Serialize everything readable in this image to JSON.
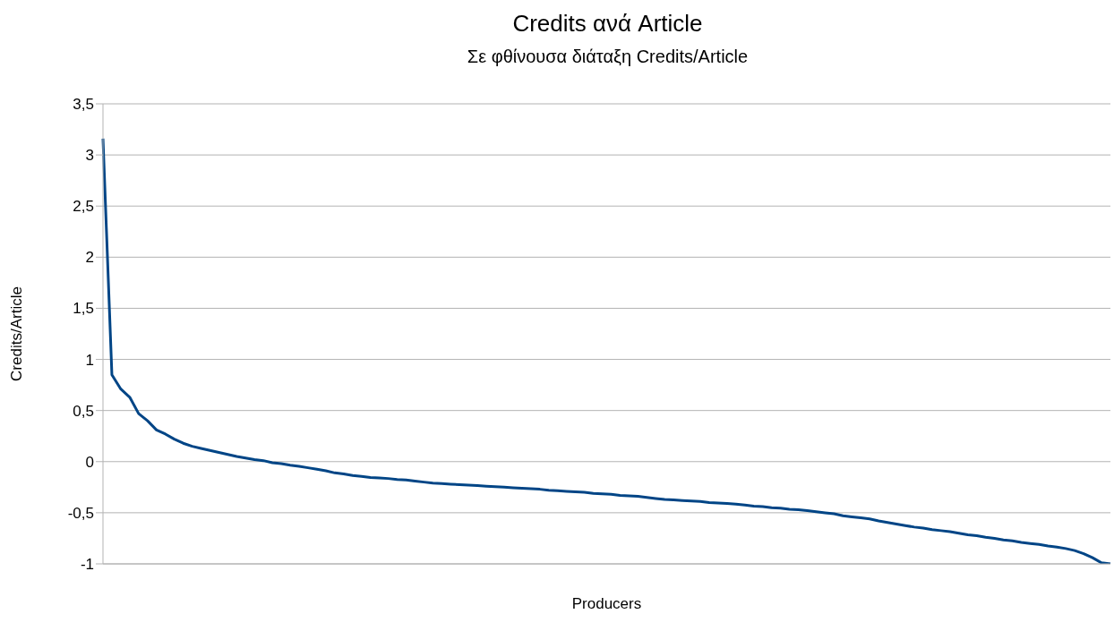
{
  "chart_data": {
    "type": "line",
    "title": "Credits ανά Article",
    "subtitle": "Σε φθίνουσα διάταξη Credits/Article",
    "xlabel": "Producers",
    "ylabel": "Credits/Article",
    "categories": [
      null,
      null,
      null,
      null,
      null,
      null,
      null,
      null,
      null,
      null,
      null,
      null,
      null,
      null,
      null,
      null,
      null,
      null,
      null,
      null,
      null,
      null,
      null,
      null,
      null,
      null,
      null,
      null,
      null,
      null,
      null,
      null,
      null,
      null,
      null,
      null,
      null,
      null,
      null,
      null,
      null,
      null,
      null,
      null,
      null,
      null,
      null,
      null,
      null,
      null,
      null,
      null,
      null,
      null,
      null,
      null,
      null,
      null,
      null,
      null,
      null,
      null,
      null,
      null,
      null,
      null,
      null,
      null,
      null,
      null,
      null,
      null,
      null,
      null,
      null,
      null,
      null,
      null,
      null,
      null,
      null,
      null,
      null,
      null,
      null,
      null,
      null,
      null,
      null,
      null,
      null,
      null,
      null,
      null,
      null,
      null,
      null,
      null,
      null,
      null,
      null,
      null,
      null,
      null,
      null,
      null,
      null,
      null,
      null,
      null,
      null,
      null,
      null,
      null
    ],
    "series": [
      {
        "color": "#004586",
        "values": [
          3.16,
          0.85,
          0.71,
          0.63,
          0.47,
          0.4,
          0.31,
          0.27,
          0.22,
          0.18,
          0.15,
          0.13,
          0.11,
          0.09,
          0.07,
          0.05,
          0.035,
          0.02,
          0.01,
          -0.01,
          -0.02,
          -0.035,
          -0.045,
          -0.06,
          -0.075,
          -0.09,
          -0.11,
          -0.12,
          -0.135,
          -0.145,
          -0.155,
          -0.16,
          -0.165,
          -0.175,
          -0.18,
          -0.19,
          -0.2,
          -0.21,
          -0.215,
          -0.22,
          -0.225,
          -0.23,
          -0.235,
          -0.24,
          -0.245,
          -0.25,
          -0.255,
          -0.26,
          -0.265,
          -0.27,
          -0.28,
          -0.285,
          -0.29,
          -0.295,
          -0.3,
          -0.31,
          -0.315,
          -0.32,
          -0.33,
          -0.335,
          -0.34,
          -0.35,
          -0.36,
          -0.37,
          -0.375,
          -0.38,
          -0.385,
          -0.39,
          -0.4,
          -0.405,
          -0.41,
          -0.415,
          -0.425,
          -0.435,
          -0.44,
          -0.45,
          -0.455,
          -0.465,
          -0.47,
          -0.48,
          -0.49,
          -0.5,
          -0.51,
          -0.53,
          -0.54,
          -0.55,
          -0.56,
          -0.58,
          -0.595,
          -0.61,
          -0.625,
          -0.64,
          -0.65,
          -0.665,
          -0.675,
          -0.685,
          -0.7,
          -0.715,
          -0.725,
          -0.74,
          -0.75,
          -0.765,
          -0.775,
          -0.79,
          -0.8,
          -0.81,
          -0.825,
          -0.835,
          -0.85,
          -0.87,
          -0.9,
          -0.94,
          -0.99,
          -1.0
        ]
      }
    ],
    "ylim": [
      -1,
      3.5
    ],
    "yticks": [
      {
        "value": -1,
        "label": "-1"
      },
      {
        "value": -0.5,
        "label": "-0,5"
      },
      {
        "value": 0,
        "label": "0"
      },
      {
        "value": 0.5,
        "label": "0,5"
      },
      {
        "value": 1,
        "label": "1"
      },
      {
        "value": 1.5,
        "label": "1,5"
      },
      {
        "value": 2,
        "label": "2"
      },
      {
        "value": 2.5,
        "label": "2,5"
      },
      {
        "value": 3,
        "label": "3"
      },
      {
        "value": 3.5,
        "label": "3,5"
      }
    ],
    "grid": "y",
    "legend": false,
    "marker": "none",
    "line_style": "solid"
  }
}
